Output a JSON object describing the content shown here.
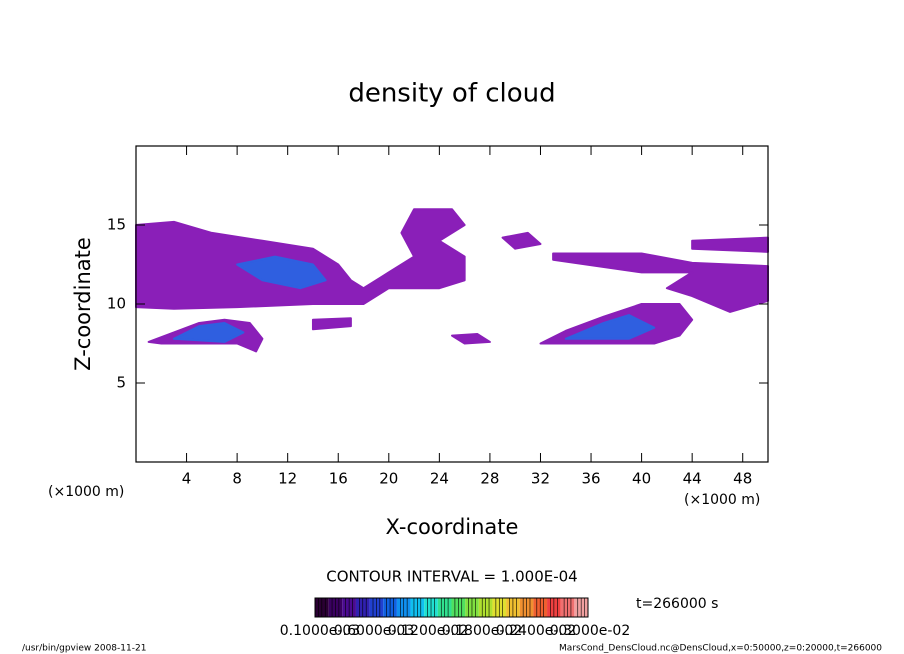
{
  "chart_data": {
    "type": "contour",
    "title": "density of cloud",
    "x_label": "X-coordinate",
    "y_label": "Z-coordinate",
    "x_unit": "(×1000 m)",
    "y_unit": "(×1000 m)",
    "xlim": [
      0,
      50
    ],
    "ylim": [
      0,
      20
    ],
    "xticks": [
      4,
      8,
      12,
      16,
      20,
      24,
      28,
      32,
      36,
      40,
      44,
      48
    ],
    "yticks": [
      5,
      10,
      15
    ],
    "contour_interval": "CONTOUR INTERVAL = 1.000E-04",
    "time_label": "t=266000 s",
    "footer_left": "/usr/bin/gpview   2008-11-21",
    "footer_right": "MarsCond_DensCloud.nc@DensCloud,x=0:50000,z=0:20000,t=266000",
    "colorbar": {
      "colors": [
        "#2a0033",
        "#3a0060",
        "#4a0a90",
        "#3020b0",
        "#2040d0",
        "#1060e0",
        "#1090f0",
        "#10c0f0",
        "#20e0d0",
        "#30e090",
        "#50e060",
        "#80e040",
        "#b0e030",
        "#e0e030",
        "#f0c030",
        "#f09030",
        "#f06030",
        "#f04040",
        "#f07070",
        "#f0a0a0"
      ],
      "labels": [
        "0.1000e-03",
        "0.6000e-03",
        "0.1200e-02",
        "0.1800e-02",
        "0.2400e-02",
        "0.3000e-02"
      ]
    },
    "regions": [
      {
        "value": 0.0001,
        "color": "#8a1fb8",
        "points": [
          [
            0,
            15
          ],
          [
            3,
            15.2
          ],
          [
            6,
            14.5
          ],
          [
            10,
            14
          ],
          [
            14,
            13.5
          ],
          [
            16,
            12.5
          ],
          [
            17,
            11.5
          ],
          [
            18,
            11
          ],
          [
            20,
            12
          ],
          [
            22,
            13
          ],
          [
            21,
            14.5
          ],
          [
            22,
            16
          ],
          [
            25,
            16
          ],
          [
            26,
            15
          ],
          [
            24,
            14
          ],
          [
            26,
            13
          ],
          [
            26,
            11.5
          ],
          [
            24,
            11
          ],
          [
            20,
            11
          ],
          [
            18,
            10
          ],
          [
            14,
            10
          ],
          [
            8,
            9.8
          ],
          [
            3,
            9.7
          ],
          [
            0,
            9.8
          ]
        ]
      },
      {
        "value": 0.0006,
        "color": "#2f5fe0",
        "points": [
          [
            8,
            12.5
          ],
          [
            11,
            13
          ],
          [
            14,
            12.5
          ],
          [
            15,
            11.5
          ],
          [
            13,
            11
          ],
          [
            10,
            11.5
          ]
        ]
      },
      {
        "value": 0.0001,
        "color": "#8a1fb8",
        "points": [
          [
            1,
            7.6
          ],
          [
            3,
            8.2
          ],
          [
            5,
            8.8
          ],
          [
            7,
            9.0
          ],
          [
            9,
            8.8
          ],
          [
            10,
            7.8
          ],
          [
            9.5,
            7
          ],
          [
            8,
            7.5
          ],
          [
            2,
            7.5
          ]
        ]
      },
      {
        "value": 0.0006,
        "color": "#2f5fe0",
        "points": [
          [
            3,
            7.8
          ],
          [
            5,
            8.6
          ],
          [
            7,
            8.8
          ],
          [
            8.5,
            8.2
          ],
          [
            7,
            7.6
          ]
        ]
      },
      {
        "value": 0.0001,
        "color": "#8a1fb8",
        "points": [
          [
            32,
            7.5
          ],
          [
            34,
            8.3
          ],
          [
            37,
            9.2
          ],
          [
            40,
            10
          ],
          [
            43,
            10
          ],
          [
            44,
            9
          ],
          [
            43,
            8
          ],
          [
            41,
            7.5
          ]
        ]
      },
      {
        "value": 0.0006,
        "color": "#2f5fe0",
        "points": [
          [
            34,
            7.8
          ],
          [
            37,
            8.8
          ],
          [
            39,
            9.3
          ],
          [
            41,
            8.5
          ],
          [
            39,
            7.8
          ]
        ]
      },
      {
        "value": 0.0001,
        "color": "#8a1fb8",
        "points": [
          [
            33,
            13.2
          ],
          [
            40,
            13.2
          ],
          [
            44,
            12.6
          ],
          [
            50,
            12.4
          ],
          [
            50,
            10.2
          ],
          [
            47,
            9.5
          ],
          [
            44,
            10.5
          ],
          [
            42,
            11
          ],
          [
            44,
            12
          ],
          [
            40,
            12
          ],
          [
            33,
            12.8
          ]
        ]
      },
      {
        "value": 0.0001,
        "color": "#8a1fb8",
        "points": [
          [
            44,
            14
          ],
          [
            50,
            14.2
          ],
          [
            50,
            13.3
          ],
          [
            44,
            13.5
          ]
        ]
      },
      {
        "value": 0.0001,
        "color": "#8a1fb8",
        "points": [
          [
            29,
            14.2
          ],
          [
            31,
            14.5
          ],
          [
            32,
            13.8
          ],
          [
            30,
            13.5
          ]
        ]
      },
      {
        "value": 0.0001,
        "color": "#8a1fb8",
        "points": [
          [
            25,
            8
          ],
          [
            27,
            8.1
          ],
          [
            28,
            7.6
          ],
          [
            26,
            7.5
          ]
        ]
      },
      {
        "value": 0.0001,
        "color": "#8a1fb8",
        "points": [
          [
            14,
            9
          ],
          [
            17,
            9.1
          ],
          [
            17,
            8.6
          ],
          [
            14,
            8.4
          ]
        ]
      },
      {
        "value": 0.0001,
        "color": "#8a1fb8",
        "points": [
          [
            35,
            13
          ],
          [
            37,
            13
          ],
          [
            37,
            12.5
          ],
          [
            35,
            12.6
          ]
        ]
      }
    ]
  }
}
